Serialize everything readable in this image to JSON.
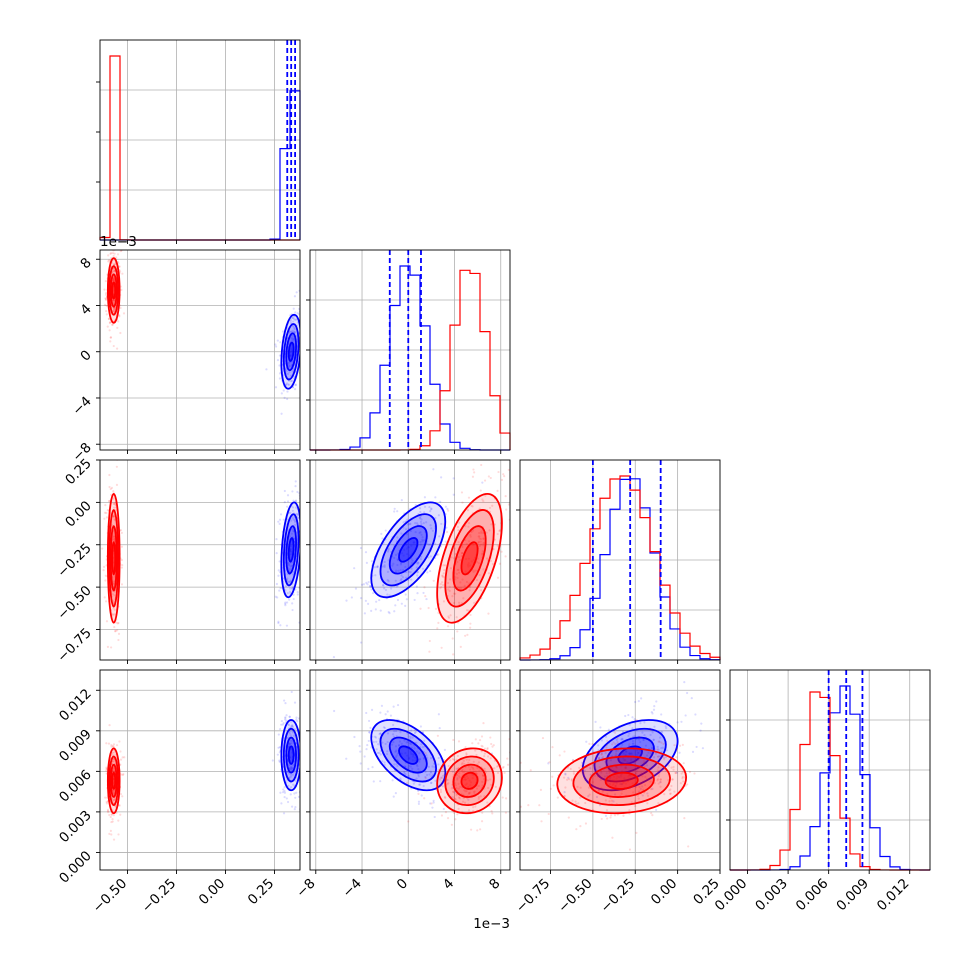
{
  "chart_data": {
    "type": "corner",
    "parameters": [
      {
        "range": [
          -0.64,
          0.38
        ],
        "ticks": [
          -0.5,
          -0.25,
          0.0,
          0.25
        ],
        "tick_labels": [
          "−0.50",
          "−0.25",
          "0.00",
          "0.25"
        ],
        "offset_label": ""
      },
      {
        "range": [
          -8.5,
          8.8
        ],
        "ticks": [
          -8,
          -4,
          0,
          4,
          8
        ],
        "tick_labels": [
          "−8",
          "−4",
          "0",
          "4",
          "8"
        ],
        "offset_label": "1e−3"
      },
      {
        "range": [
          -0.93,
          0.25
        ],
        "ticks": [
          -0.75,
          -0.5,
          -0.25,
          0.0,
          0.25
        ],
        "tick_labels": [
          "−0.75",
          "−0.50",
          "−0.25",
          "0.00",
          "0.25"
        ],
        "offset_label": ""
      },
      {
        "range": [
          -0.0013,
          0.0135
        ],
        "ticks": [
          0.0,
          0.003,
          0.006,
          0.009,
          0.012
        ],
        "tick_labels": [
          "0.000",
          "0.003",
          "0.006",
          "0.009",
          "0.012"
        ],
        "offset_label": ""
      }
    ],
    "series": [
      {
        "color": "#0000ff",
        "mean": [
          0.335,
          0.0,
          -0.28,
          0.0072
        ],
        "std": [
          0.025,
          1.6,
          0.14,
          0.0013
        ]
      },
      {
        "color": "#ff0000",
        "mean": [
          -0.57,
          5.3,
          -0.33,
          0.0053
        ],
        "std": [
          0.015,
          1.4,
          0.19,
          0.0012
        ]
      }
    ],
    "quantile_lines": {
      "color": "#0000ff",
      "values": [
        [
          0.315,
          0.335,
          0.355
        ],
        [
          -1.6,
          0.0,
          1.1
        ],
        [
          -0.5,
          -0.28,
          -0.1
        ],
        [
          0.006,
          0.0073,
          0.0085
        ]
      ]
    },
    "grid": true
  }
}
